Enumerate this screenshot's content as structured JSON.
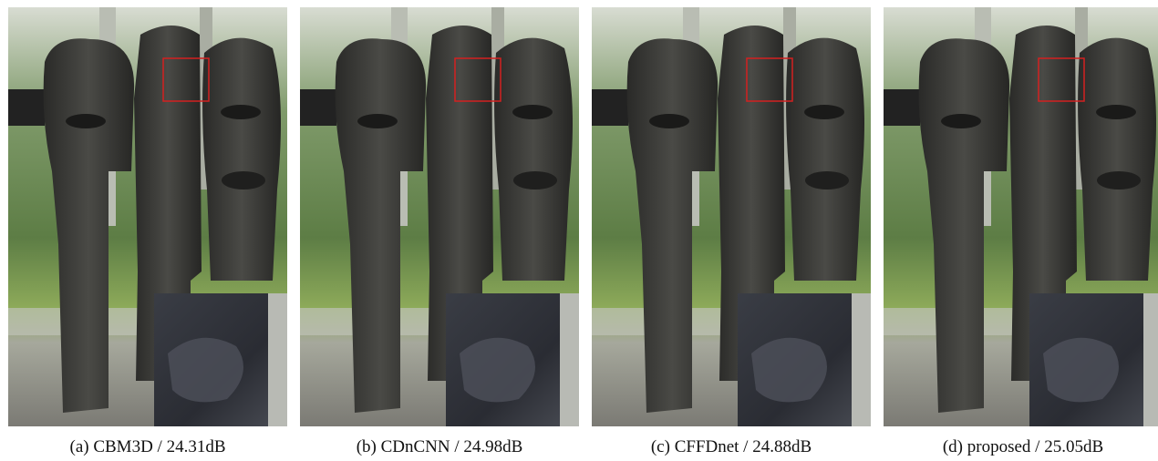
{
  "figure": {
    "panels": [
      {
        "caption": "(a) CBM3D / 24.31dB"
      },
      {
        "caption": "(b) CDnCNN / 24.98dB"
      },
      {
        "caption": "(c) CFFDnet / 24.88dB"
      },
      {
        "caption": "(d) proposed / 25.05dB"
      }
    ]
  }
}
